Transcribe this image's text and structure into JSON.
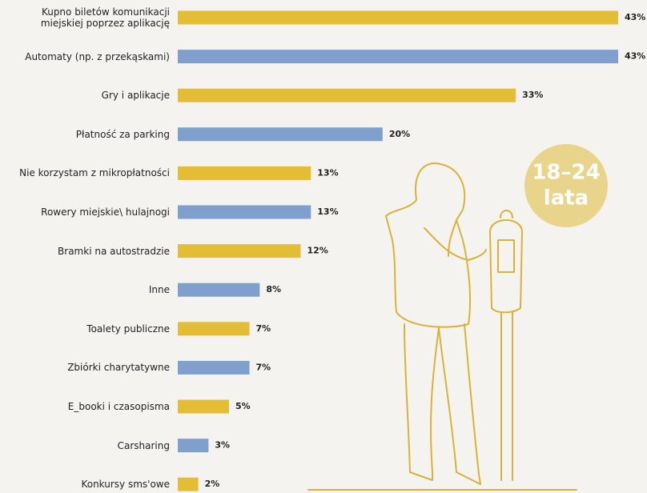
{
  "chart_data": {
    "type": "bar",
    "categories": [
      "Kupno biletów komunikacji\nmiejskiej poprzez aplikację",
      "Automaty (np. z przekąskami)",
      "Gry i aplikacje",
      "Płatność za parking",
      "Nie korzystam z mikropłatności",
      "Rowery miejskie\\ hulajnogi",
      "Bramki na autostradzie",
      "Inne",
      "Toalety publiczne",
      "Zbiórki charytatywne",
      "E_booki i czasopisma",
      "Carsharing",
      "Konkursy sms'owe"
    ],
    "values": [
      43,
      43,
      33,
      20,
      13,
      13,
      12,
      8,
      7,
      7,
      5,
      3,
      2
    ],
    "value_labels": [
      "43%",
      "43%",
      "33%",
      "20%",
      "13%",
      "13%",
      "12%",
      "8%",
      "7%",
      "7%",
      "5%",
      "3%",
      "2%"
    ],
    "colors": [
      "#e3bd36",
      "#7fa0cc",
      "#e3bd36",
      "#7fa0cc",
      "#e3bd36",
      "#7fa0cc",
      "#e3bd36",
      "#7fa0cc",
      "#e3bd36",
      "#7fa0cc",
      "#e3bd36",
      "#7fa0cc",
      "#e3bd36"
    ],
    "annotations": [
      "18–24",
      "lata"
    ]
  }
}
